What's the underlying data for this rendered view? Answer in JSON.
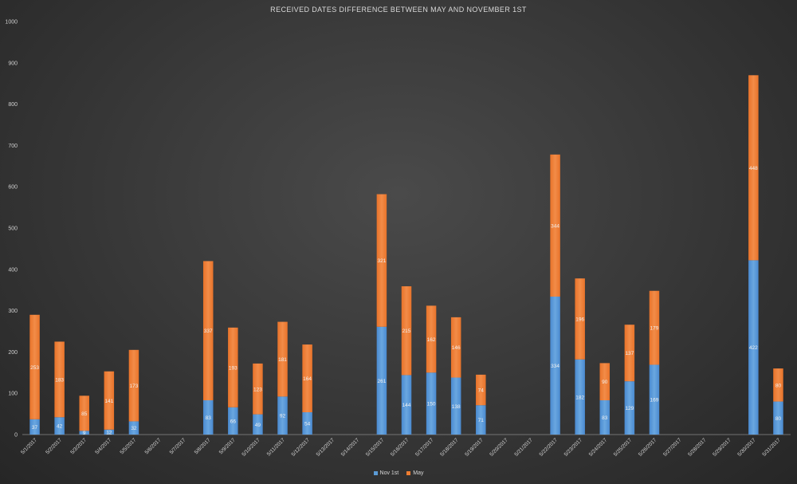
{
  "chart_data": {
    "type": "bar",
    "stacked": true,
    "title": "RECEIVED DATES DIFFERENCE BETWEEN MAY AND NOVEMBER 1ST",
    "xlabel": "",
    "ylabel": "",
    "ylim": [
      0,
      1000
    ],
    "yticks": [
      "0",
      "100",
      "200",
      "300",
      "400",
      "500",
      "600",
      "700",
      "800",
      "900",
      "1000"
    ],
    "grid": false,
    "legend_position": "bottom",
    "categories": [
      "5/1/2017",
      "5/2/2017",
      "5/3/2017",
      "5/4/2017",
      "5/5/2017",
      "5/6/2017",
      "5/7/2017",
      "5/8/2017",
      "5/9/2017",
      "5/10/2017",
      "5/11/2017",
      "5/12/2017",
      "5/13/2017",
      "5/14/2017",
      "5/15/2017",
      "5/16/2017",
      "5/17/2017",
      "5/18/2017",
      "5/19/2017",
      "5/20/2017",
      "5/21/2017",
      "5/22/2017",
      "5/23/2017",
      "5/24/2017",
      "5/25/2017",
      "5/26/2017",
      "5/27/2017",
      "5/28/2017",
      "5/29/2017",
      "5/30/2017",
      "5/31/2017"
    ],
    "series": [
      {
        "name": "Nov 1st",
        "color": "#5b9bd5",
        "values": [
          37,
          42,
          9,
          12,
          32,
          null,
          null,
          83,
          66,
          49,
          92,
          54,
          null,
          null,
          261,
          144,
          150,
          138,
          71,
          null,
          null,
          334,
          182,
          83,
          129,
          169,
          null,
          null,
          null,
          422,
          80
        ],
        "labels": [
          "37",
          "42",
          "9",
          "12",
          "32",
          "",
          "",
          "83",
          "66",
          "49",
          "92",
          "54",
          "",
          "",
          "261",
          "144",
          "150",
          "138",
          "71",
          "",
          "",
          "334",
          "182",
          "83",
          "129",
          "169",
          "",
          "",
          "",
          "422",
          "80"
        ]
      },
      {
        "name": "May",
        "color": "#ed7d31",
        "values": [
          253,
          183,
          85,
          141,
          173,
          null,
          null,
          337,
          193,
          123,
          181,
          164,
          null,
          null,
          321,
          215,
          162,
          146,
          74,
          null,
          null,
          344,
          196,
          90,
          137,
          179,
          null,
          null,
          null,
          448,
          80
        ],
        "labels": [
          "253",
          "183",
          "85",
          "141",
          "173",
          "",
          "",
          "337",
          "193",
          "123",
          "181",
          "164",
          "",
          "",
          "321",
          "215",
          "162",
          "146",
          "74",
          "",
          "",
          "344",
          "196",
          "90",
          "137",
          "179",
          "",
          "",
          "",
          "448",
          "80"
        ]
      }
    ]
  }
}
